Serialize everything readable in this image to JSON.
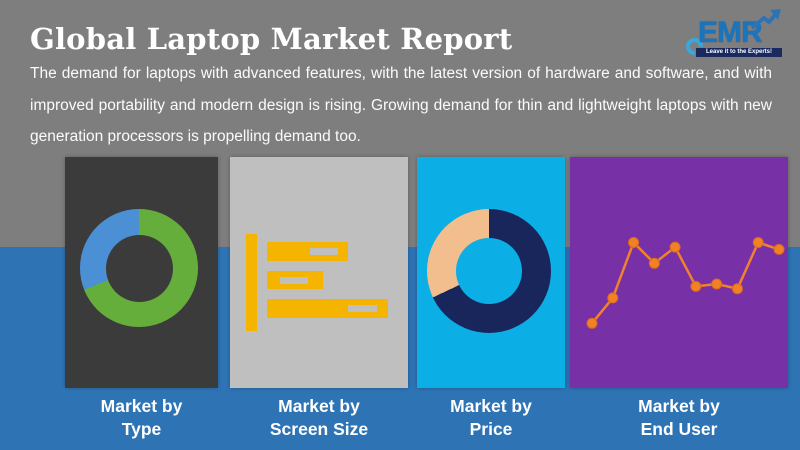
{
  "header": {
    "title": "Global Laptop Market Report",
    "description": "The demand for laptops with advanced features, with the latest version of hardware and software, and with improved portability and modern design is rising. Growing demand for thin and lightweight laptops with new generation processors is propelling demand too."
  },
  "logo": {
    "brand": "EMR",
    "tagline": "Leave it to the Experts!",
    "brand_color": "#1b75bc",
    "ribbon_color": "#1b2a5e",
    "accent_color": "#36a9e1"
  },
  "background": {
    "top_color": "#7e7e7e",
    "bottom_color": "#2e74b5"
  },
  "panels": [
    {
      "id": "type",
      "bg": "#3b3b3b",
      "caption": [
        "Market by",
        "Type"
      ]
    },
    {
      "id": "screen-size",
      "bg": "#bfbfbf",
      "caption": [
        "Market by",
        "Screen Size"
      ]
    },
    {
      "id": "price",
      "bg": "#0baee5",
      "caption": [
        "Market by",
        "Price"
      ]
    },
    {
      "id": "end-user",
      "bg": "#7730a5",
      "caption": [
        "Market by",
        "End User"
      ]
    }
  ],
  "chart_data": [
    {
      "type": "pie",
      "subtype": "donut",
      "title": "Market by Type",
      "slices": [
        {
          "label": "segment-1",
          "value": 69,
          "color": "#66ae3c"
        },
        {
          "label": "segment-2",
          "value": 31,
          "color": "#4b8fd5"
        }
      ],
      "start_angle_deg": 0,
      "legend": "none",
      "data_labels": "none",
      "note": "decorative icon chart, unlabeled"
    },
    {
      "type": "bar",
      "orientation": "horizontal",
      "title": "Market by Screen Size",
      "categories": [
        "bar-1",
        "bar-2",
        "bar-3"
      ],
      "values": [
        67,
        46,
        100
      ],
      "unit": "relative bar length %, decorative icon, unlabeled",
      "color": "#f5b400",
      "legend": "none"
    },
    {
      "type": "pie",
      "subtype": "donut",
      "title": "Market by Price",
      "slices": [
        {
          "label": "segment-1",
          "value": 68,
          "color": "#18265b"
        },
        {
          "label": "segment-2",
          "value": 32,
          "color": "#f2be8e"
        }
      ],
      "start_angle_deg": 0,
      "legend": "none",
      "data_labels": "none",
      "note": "decorative icon chart, unlabeled"
    },
    {
      "type": "line",
      "title": "Market by End User",
      "x": [
        1,
        2,
        3,
        4,
        5,
        6,
        7,
        8,
        9,
        10
      ],
      "y": [
        28,
        39,
        63,
        54,
        61,
        44,
        45,
        43,
        63,
        60
      ],
      "ylim": [
        0,
        100
      ],
      "color": "#f0812f",
      "marker_color": "#f08127",
      "markers": true,
      "axes": "none",
      "note": "decorative icon chart, unlabeled trend line"
    }
  ]
}
